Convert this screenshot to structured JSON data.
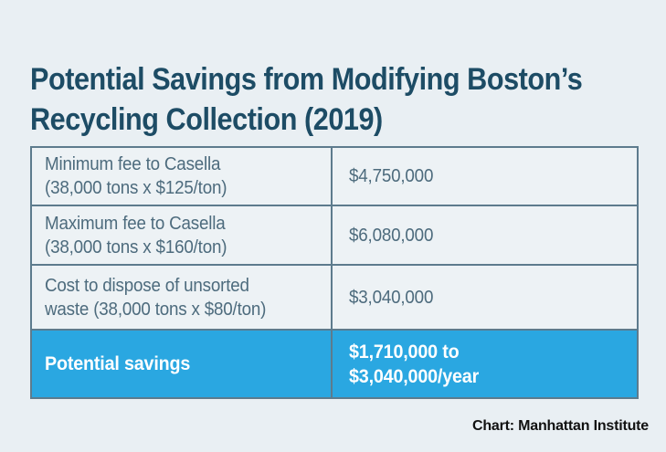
{
  "title": "Potential Savings from Modifying Boston’s Recycling Collection (2019)",
  "title_lines": {
    "line1": "Potential Savings from Modifying Boston’s",
    "line2": "Recycling Collection (2019)"
  },
  "table": {
    "rows": [
      {
        "label": "Minimum fee to Casella (38,000 tons x $125/ton)",
        "label_lines": [
          "Minimum fee to Casella",
          "(38,000 tons x $125/ton)"
        ],
        "value": "$4,750,000",
        "value_lines": [
          "$4,750,000"
        ]
      },
      {
        "label": "Maximum fee to Casella (38,000 tons x $160/ton)",
        "label_lines": [
          "Maximum fee to Casella",
          "(38,000 tons x $160/ton)"
        ],
        "value": "$6,080,000",
        "value_lines": [
          "$6,080,000"
        ]
      },
      {
        "label": "Cost to dispose of unsorted waste (38,000 tons x $80/ton)",
        "label_lines": [
          "Cost to dispose of unsorted",
          "waste (38,000 tons x $80/ton)"
        ],
        "value": "$3,040,000",
        "value_lines": [
          "$3,040,000"
        ]
      },
      {
        "label": "Potential savings",
        "label_lines": [
          "Potential savings"
        ],
        "value": "$1,710,000 to $3,040,000/year",
        "value_lines": [
          "$1,710,000 to",
          "$3,040,000/year"
        ]
      }
    ]
  },
  "footer": {
    "credit": "Chart: Manhattan Institute"
  },
  "colors": {
    "page_background": "#e9eff3",
    "cell_background": "#edf2f5",
    "table_border": "#5d7b8d",
    "title_text": "#1d4c65",
    "cell_text": "#4d6b7d",
    "highlight_row_background": "#2aa7e1",
    "highlight_row_text": "#ffffff",
    "footer_text": "#111111"
  },
  "chart_data": {
    "type": "table",
    "title": "Potential Savings from Modifying Boston’s Recycling Collection (2019)",
    "rows": [
      [
        "Minimum fee to Casella (38,000 tons x $125/ton)",
        "$4,750,000"
      ],
      [
        "Maximum fee to Casella (38,000 tons x $160/ton)",
        "$6,080,000"
      ],
      [
        "Cost to dispose of unsorted waste (38,000 tons x $80/ton)",
        "$3,040,000"
      ],
      [
        "Potential savings",
        "$1,710,000 to $3,040,000/year"
      ]
    ],
    "highlighted_row": "Potential savings",
    "annotations": [
      "Chart: Manhattan Institute"
    ],
    "assumed_tonnage": 38000,
    "min_fee_per_ton_usd": 125,
    "max_fee_per_ton_usd": 160,
    "unsorted_disposal_fee_per_ton_usd": 80
  }
}
